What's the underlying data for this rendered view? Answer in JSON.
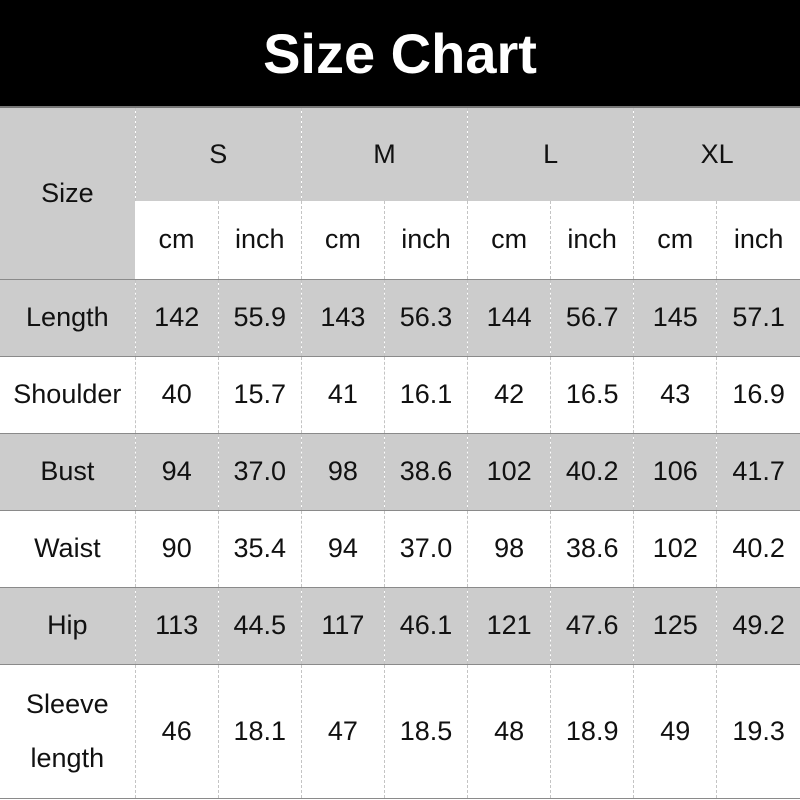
{
  "title": "Size Chart",
  "table": {
    "corner": "Size",
    "sizes": [
      "S",
      "M",
      "L",
      "XL"
    ],
    "units": [
      "cm",
      "inch"
    ],
    "rows": [
      {
        "label": "Length",
        "values": [
          "142",
          "55.9",
          "143",
          "56.3",
          "144",
          "56.7",
          "145",
          "57.1"
        ]
      },
      {
        "label": "Shoulder",
        "values": [
          "40",
          "15.7",
          "41",
          "16.1",
          "42",
          "16.5",
          "43",
          "16.9"
        ]
      },
      {
        "label": "Bust",
        "values": [
          "94",
          "37.0",
          "98",
          "38.6",
          "102",
          "40.2",
          "106",
          "41.7"
        ]
      },
      {
        "label": "Waist",
        "values": [
          "90",
          "35.4",
          "94",
          "37.0",
          "98",
          "38.6",
          "102",
          "40.2"
        ]
      },
      {
        "label": "Hip",
        "values": [
          "113",
          "44.5",
          "117",
          "46.1",
          "121",
          "47.6",
          "125",
          "49.2"
        ]
      },
      {
        "label": "Sleeve length",
        "values": [
          "46",
          "18.1",
          "47",
          "18.5",
          "48",
          "18.9",
          "49",
          "19.3"
        ]
      }
    ]
  },
  "colors": {
    "title_bg": "#000000",
    "gray_row": "#cccccc",
    "white_row": "#ffffff"
  }
}
